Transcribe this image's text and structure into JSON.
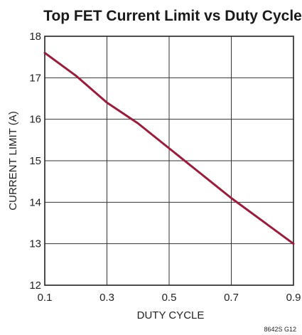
{
  "chart_data": {
    "type": "line",
    "title": "Top FET Current Limit vs Duty Cycle",
    "xlabel": "DUTY CYCLE",
    "ylabel": "CURRENT LIMIT (A)",
    "xlim": [
      0.1,
      0.9
    ],
    "ylim": [
      12,
      18
    ],
    "x_ticks": [
      "0.1",
      "0.3",
      "0.5",
      "0.7",
      "0.9"
    ],
    "x_tick_values": [
      0.1,
      0.3,
      0.5,
      0.7,
      0.9
    ],
    "y_ticks": [
      "12",
      "13",
      "14",
      "15",
      "16",
      "17",
      "18"
    ],
    "y_tick_values": [
      12,
      13,
      14,
      15,
      16,
      17,
      18
    ],
    "grid": true,
    "series": [
      {
        "color": "#9b1b3a",
        "x": [
          0.1,
          0.2,
          0.3,
          0.4,
          0.5,
          0.6,
          0.7,
          0.8,
          0.9
        ],
        "y": [
          17.6,
          17.05,
          16.4,
          15.9,
          15.3,
          14.7,
          14.1,
          13.55,
          13.0
        ]
      }
    ]
  },
  "figure_id": "8642S G12"
}
